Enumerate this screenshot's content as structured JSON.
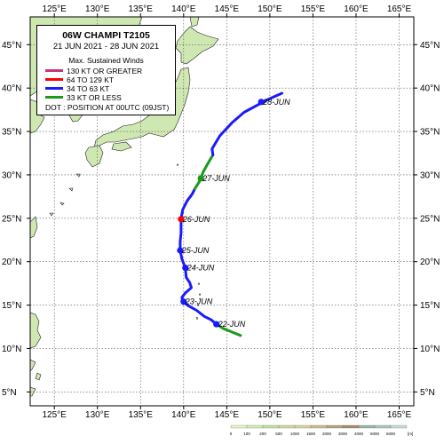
{
  "map": {
    "lon_labels": [
      "125°E",
      "130°E",
      "135°E",
      "140°E",
      "145°E",
      "150°E",
      "155°E",
      "160°E",
      "165°E"
    ],
    "lat_labels": [
      "45°N",
      "40°N",
      "35°N",
      "30°N",
      "25°N",
      "20°N",
      "15°N",
      "10°N",
      "5°N"
    ],
    "lon_values": [
      125,
      130,
      135,
      140,
      145,
      150,
      155,
      160,
      165
    ],
    "lat_values": [
      45,
      40,
      35,
      30,
      25,
      20,
      15,
      10,
      5
    ],
    "lon_range": [
      122.2,
      166.7
    ],
    "lat_range": [
      3.4,
      48.2
    ]
  },
  "legend": {
    "title": "06W  CHAMPI  T2105",
    "period": "21 JUN 2021 - 28 JUN 2021",
    "winds_heading": "Max. Sustained Winds",
    "items": [
      {
        "label": "130 KT OR GREATER",
        "color": "#c2387a"
      },
      {
        "label": "64 TO 129 KT",
        "color": "#ff0000"
      },
      {
        "label": "34 TO 63 KT",
        "color": "#1a1aff"
      },
      {
        "label": "33 KT OR LESS",
        "color": "#1a9a1a"
      }
    ],
    "dot_note": "DOT : POSITION AT 00UTC (09JST)"
  },
  "track": {
    "segments": [
      {
        "category": "33 KT OR LESS",
        "color": "#1a9a1a",
        "points": [
          [
            146.6,
            11.5
          ],
          [
            145.6,
            11.9
          ],
          [
            144.6,
            12.3
          ],
          [
            143.8,
            12.8
          ]
        ]
      },
      {
        "category": "34 TO 63 KT",
        "color": "#1a1aff",
        "points": [
          [
            143.8,
            12.8
          ],
          [
            143.2,
            13.3
          ],
          [
            142.4,
            13.7
          ],
          [
            141.5,
            14.4
          ],
          [
            140.6,
            14.9
          ],
          [
            139.9,
            15.4
          ],
          [
            139.8,
            15.9
          ],
          [
            140.2,
            16.4
          ],
          [
            140.9,
            17.0
          ],
          [
            140.7,
            17.6
          ],
          [
            140.3,
            18.2
          ],
          [
            140.2,
            19.3
          ],
          [
            139.8,
            20.3
          ],
          [
            139.6,
            21.3
          ],
          [
            139.6,
            22.3
          ],
          [
            139.7,
            23.3
          ],
          [
            139.7,
            24.3
          ],
          [
            139.7,
            24.8
          ]
        ]
      },
      {
        "category": "64 TO 129 KT",
        "color": "#ff0000",
        "points": [
          [
            139.7,
            24.8
          ],
          [
            139.7,
            25.0
          ]
        ]
      },
      {
        "category": "34 TO 63 KT",
        "color": "#1a1aff",
        "points": [
          [
            139.7,
            25.0
          ],
          [
            139.9,
            26.0
          ],
          [
            140.4,
            27.0
          ],
          [
            141.0,
            27.8
          ],
          [
            141.3,
            28.4
          ]
        ]
      },
      {
        "category": "33 KT OR LESS",
        "color": "#1a9a1a",
        "points": [
          [
            141.3,
            28.4
          ],
          [
            141.8,
            29.2
          ],
          [
            142.3,
            30.4
          ],
          [
            143.1,
            31.8
          ],
          [
            143.4,
            32.3
          ]
        ]
      },
      {
        "category": "34 TO 63 KT",
        "color": "#1a1aff",
        "points": [
          [
            143.4,
            32.3
          ],
          [
            143.3,
            33.0
          ],
          [
            144.2,
            34.5
          ],
          [
            145.6,
            36.0
          ],
          [
            147.0,
            37.2
          ],
          [
            148.5,
            38.0
          ],
          [
            149.6,
            38.6
          ],
          [
            150.5,
            39.0
          ],
          [
            151.4,
            39.4
          ]
        ]
      }
    ],
    "daily_positions": [
      {
        "label": "22-JUN",
        "lon": 143.8,
        "lat": 12.8,
        "color": "#1a1aff"
      },
      {
        "label": "23-JUN",
        "lon": 140.0,
        "lat": 15.4,
        "color": "#1a1aff"
      },
      {
        "label": "24-JUN",
        "lon": 140.2,
        "lat": 19.3,
        "color": "#1a1aff"
      },
      {
        "label": "25-JUN",
        "lon": 139.6,
        "lat": 21.3,
        "color": "#1a1aff"
      },
      {
        "label": "26-JUN",
        "lon": 139.7,
        "lat": 24.9,
        "color": "#ff0000"
      },
      {
        "label": "27-JUN",
        "lon": 142.0,
        "lat": 29.6,
        "color": "#1a9a1a"
      },
      {
        "label": "28-JUN",
        "lon": 149.0,
        "lat": 38.4,
        "color": "#1a1aff"
      }
    ]
  },
  "elevation_colorbar": {
    "unit": "[m]",
    "labels": [
      "0",
      "100",
      "200",
      "500",
      "1000",
      "1500",
      "2000",
      "3000",
      "4000",
      "5000",
      "6000"
    ],
    "colors": [
      "#e6f5c8",
      "#d2eeb0",
      "#c0e39a",
      "#cfd7a0",
      "#d9d29c",
      "#cdbb8c",
      "#b9a27c",
      "#a68d6e",
      "#95b9a8",
      "#a7c7bd",
      "#c9ddd8"
    ]
  }
}
